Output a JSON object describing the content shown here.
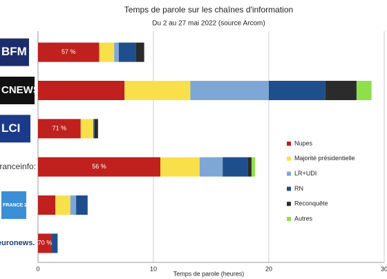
{
  "chart_data": {
    "type": "stacked-barh",
    "title": "Temps de parole sur les chaînes d'information",
    "subtitle": "Du 2 au 27 mai 2022 (source Arcom)",
    "x_label": "Temps de parole (heures)",
    "categories": [
      "BFM TV",
      "CNEWS",
      "LCI",
      "franceinfo:",
      "FRANCE 24",
      "euronews."
    ],
    "series": [
      {
        "name": "Nupes",
        "color": "#c0201e",
        "values": [
          5.3,
          7.5,
          3.7,
          10.6,
          1.5,
          1.2
        ]
      },
      {
        "name": "Majorité présidentielle",
        "color": "#f9e04b",
        "values": [
          1.3,
          5.7,
          1.1,
          3.4,
          1.3,
          0
        ]
      },
      {
        "name": "LR+UDI",
        "color": "#7fa7d6",
        "values": [
          0.4,
          6.8,
          0,
          2.0,
          0.5,
          0
        ]
      },
      {
        "name": "RN",
        "color": "#1f4e8c",
        "values": [
          1.5,
          4.9,
          0.1,
          2.2,
          1.0,
          0.5
        ]
      },
      {
        "name": "Reconquête",
        "color": "#2b2b2b",
        "values": [
          0.7,
          2.7,
          0.3,
          0.3,
          0,
          0
        ]
      },
      {
        "name": "Autres",
        "color": "#8ee04a",
        "values": [
          0,
          1.3,
          0,
          0.3,
          0,
          0
        ]
      }
    ],
    "annotations": [
      {
        "category": "BFM TV",
        "text": "57 %"
      },
      {
        "category": "LCI",
        "text": "71 %"
      },
      {
        "category": "franceinfo:",
        "text": "56 %"
      },
      {
        "category": "euronews.",
        "text": "70 %"
      }
    ],
    "xlim": [
      0,
      30
    ],
    "xticks": [
      0,
      10,
      20,
      30
    ],
    "grid": true,
    "legend": "right"
  }
}
